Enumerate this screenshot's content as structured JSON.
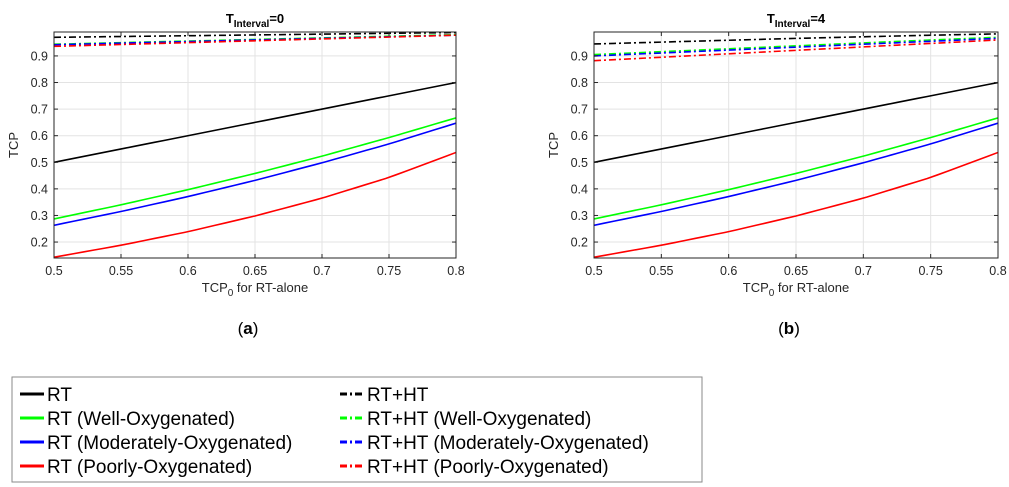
{
  "figure": {
    "caption_a": "(a)",
    "caption_b": "(b)"
  },
  "legend": {
    "entries": [
      {
        "label": "RT",
        "color": "#000000",
        "dash": false
      },
      {
        "label": "RT+HT",
        "color": "#000000",
        "dash": true
      },
      {
        "label": "RT (Well-Oxygenated)",
        "color": "#00ff00",
        "dash": false
      },
      {
        "label": "RT+HT (Well-Oxygenated)",
        "color": "#00ff00",
        "dash": true
      },
      {
        "label": "RT (Moderately-Oxygenated)",
        "color": "#0000ff",
        "dash": false
      },
      {
        "label": "RT+HT (Moderately-Oxygenated)",
        "color": "#0000ff",
        "dash": true
      },
      {
        "label": "RT (Poorly-Oxygenated)",
        "color": "#ff0000",
        "dash": false
      },
      {
        "label": "RT+HT (Poorly-Oxygenated)",
        "color": "#ff0000",
        "dash": true
      }
    ]
  },
  "chart_data": [
    {
      "type": "line",
      "title": "T_Interval=0",
      "title_main": "T",
      "title_sub": "Interval",
      "title_rest": "=0",
      "xlabel": "TCP0 for RT-alone",
      "xlabel_main": "TCP",
      "xlabel_sub": "0",
      "xlabel_rest": " for RT-alone",
      "ylabel": "TCP",
      "xlim": [
        0.5,
        0.8
      ],
      "ylim": [
        0.14,
        0.99
      ],
      "xticks": [
        0.5,
        0.55,
        0.6,
        0.65,
        0.7,
        0.75,
        0.8
      ],
      "xtick_labels": [
        "0.5",
        "0.55",
        "0.6",
        "0.65",
        "0.7",
        "0.75",
        "0.8"
      ],
      "yticks": [
        0.2,
        0.3,
        0.4,
        0.5,
        0.6,
        0.7,
        0.8,
        0.9
      ],
      "ytick_labels": [
        "0.2",
        "0.3",
        "0.4",
        "0.5",
        "0.6",
        "0.7",
        "0.8",
        "0.9"
      ],
      "grid": true,
      "x": [
        0.5,
        0.55,
        0.6,
        0.65,
        0.7,
        0.75,
        0.8
      ],
      "series": [
        {
          "name": "RT",
          "color": "#000000",
          "dash": false,
          "values": [
            0.5,
            0.55,
            0.6,
            0.65,
            0.7,
            0.75,
            0.8
          ]
        },
        {
          "name": "RT (Well-Oxygenated)",
          "color": "#00ff00",
          "dash": false,
          "values": [
            0.287,
            0.34,
            0.397,
            0.458,
            0.523,
            0.593,
            0.667
          ]
        },
        {
          "name": "RT (Moderately-Oxygenated)",
          "color": "#0000ff",
          "dash": false,
          "values": [
            0.263,
            0.315,
            0.371,
            0.432,
            0.498,
            0.569,
            0.647
          ]
        },
        {
          "name": "RT (Poorly-Oxygenated)",
          "color": "#ff0000",
          "dash": false,
          "values": [
            0.143,
            0.188,
            0.239,
            0.298,
            0.365,
            0.443,
            0.537
          ]
        },
        {
          "name": "RT+HT",
          "color": "#000000",
          "dash": true,
          "values": [
            0.97,
            0.973,
            0.976,
            0.979,
            0.982,
            0.985,
            0.988
          ]
        },
        {
          "name": "RT+HT (Well-Oxygenated)",
          "color": "#00ff00",
          "dash": true,
          "values": [
            0.944,
            0.95,
            0.956,
            0.962,
            0.968,
            0.974,
            0.98
          ]
        },
        {
          "name": "RT+HT (Moderately-Oxygenated)",
          "color": "#0000ff",
          "dash": true,
          "values": [
            0.942,
            0.948,
            0.954,
            0.96,
            0.966,
            0.972,
            0.978
          ]
        },
        {
          "name": "RT+HT (Poorly-Oxygenated)",
          "color": "#ff0000",
          "dash": true,
          "values": [
            0.936,
            0.943,
            0.95,
            0.957,
            0.964,
            0.971,
            0.978
          ]
        }
      ]
    },
    {
      "type": "line",
      "title": "T_Interval=4",
      "title_main": "T",
      "title_sub": "Interval",
      "title_rest": "=4",
      "xlabel": "TCP0 for RT-alone",
      "xlabel_main": "TCP",
      "xlabel_sub": "0",
      "xlabel_rest": " for RT-alone",
      "ylabel": "TCP",
      "xlim": [
        0.5,
        0.8
      ],
      "ylim": [
        0.14,
        0.99
      ],
      "xticks": [
        0.5,
        0.55,
        0.6,
        0.65,
        0.7,
        0.75,
        0.8
      ],
      "xtick_labels": [
        "0.5",
        "0.55",
        "0.6",
        "0.65",
        "0.7",
        "0.75",
        "0.8"
      ],
      "yticks": [
        0.2,
        0.3,
        0.4,
        0.5,
        0.6,
        0.7,
        0.8,
        0.9
      ],
      "ytick_labels": [
        "0.2",
        "0.3",
        "0.4",
        "0.5",
        "0.6",
        "0.7",
        "0.8",
        "0.9"
      ],
      "grid": true,
      "x": [
        0.5,
        0.55,
        0.6,
        0.65,
        0.7,
        0.75,
        0.8
      ],
      "series": [
        {
          "name": "RT",
          "color": "#000000",
          "dash": false,
          "values": [
            0.5,
            0.55,
            0.6,
            0.65,
            0.7,
            0.75,
            0.8
          ]
        },
        {
          "name": "RT (Well-Oxygenated)",
          "color": "#00ff00",
          "dash": false,
          "values": [
            0.287,
            0.34,
            0.397,
            0.458,
            0.523,
            0.593,
            0.667
          ]
        },
        {
          "name": "RT (Moderately-Oxygenated)",
          "color": "#0000ff",
          "dash": false,
          "values": [
            0.263,
            0.315,
            0.371,
            0.432,
            0.498,
            0.569,
            0.647
          ]
        },
        {
          "name": "RT (Poorly-Oxygenated)",
          "color": "#ff0000",
          "dash": false,
          "values": [
            0.143,
            0.188,
            0.239,
            0.298,
            0.365,
            0.443,
            0.537
          ]
        },
        {
          "name": "RT+HT",
          "color": "#000000",
          "dash": true,
          "values": [
            0.945,
            0.952,
            0.959,
            0.966,
            0.972,
            0.978,
            0.983
          ]
        },
        {
          "name": "RT+HT (Well-Oxygenated)",
          "color": "#00ff00",
          "dash": true,
          "values": [
            0.905,
            0.916,
            0.927,
            0.938,
            0.949,
            0.96,
            0.97
          ]
        },
        {
          "name": "RT+HT (Moderately-Oxygenated)",
          "color": "#0000ff",
          "dash": true,
          "values": [
            0.9,
            0.911,
            0.922,
            0.933,
            0.944,
            0.955,
            0.966
          ]
        },
        {
          "name": "RT+HT (Poorly-Oxygenated)",
          "color": "#ff0000",
          "dash": true,
          "values": [
            0.882,
            0.895,
            0.908,
            0.921,
            0.934,
            0.947,
            0.96
          ]
        }
      ]
    }
  ]
}
